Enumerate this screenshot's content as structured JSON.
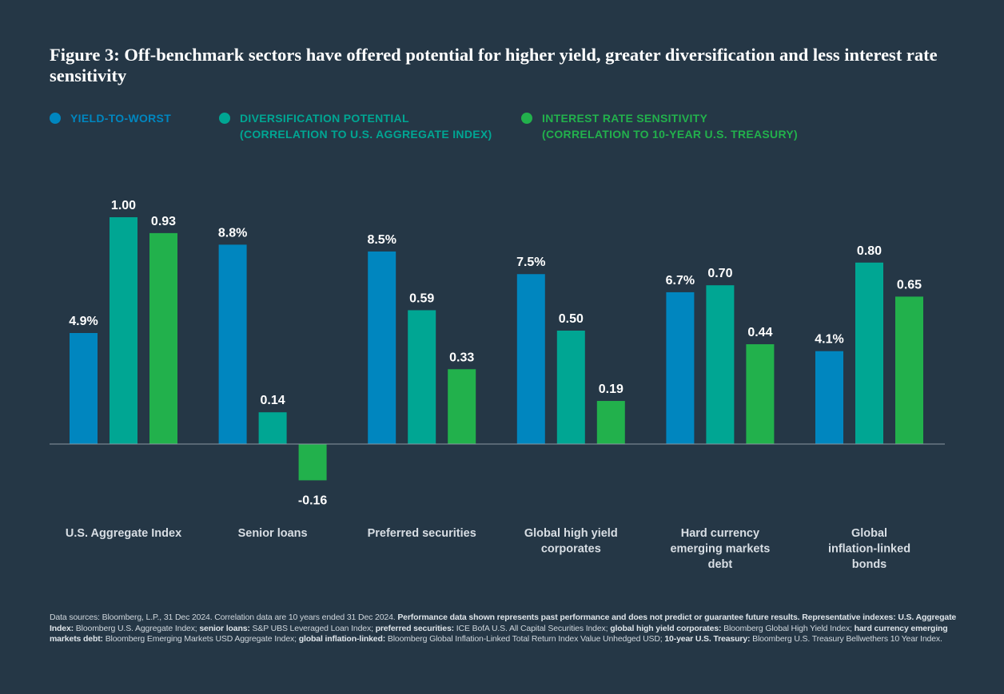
{
  "title": "Figure 3: Off-benchmark sectors have offered potential for higher yield, greater diversification and less interest rate sensitivity",
  "colors": {
    "background": "#253746",
    "yield": "#0086BF",
    "diversification": "#00A693",
    "rate_sensitivity": "#22B14C",
    "label_text": "#ffffff",
    "category_text": "#d8dee4",
    "baseline": "#8a97a2"
  },
  "legend": [
    {
      "line1": "YIELD-TO-WORST",
      "line2": "",
      "color": "#0086BF"
    },
    {
      "line1": "DIVERSIFICATION POTENTIAL",
      "line2": "(CORRELATION TO U.S. AGGREGATE INDEX)",
      "color": "#00A693"
    },
    {
      "line1": "INTEREST RATE SENSITIVITY",
      "line2": "(CORRELATION TO 10-YEAR U.S. TREASURY)",
      "color": "#22B14C"
    }
  ],
  "chart_data": {
    "type": "bar",
    "title": "Figure 3: Off-benchmark sectors have offered potential for higher yield, greater diversification and less interest rate sensitivity",
    "categories": [
      [
        "U.S. Aggregate Index"
      ],
      [
        "Senior loans"
      ],
      [
        "Preferred securities"
      ],
      [
        "Global high yield",
        "corporates"
      ],
      [
        "Hard currency",
        "emerging markets",
        "debt"
      ],
      [
        "Global",
        "inflation-linked",
        "bonds"
      ]
    ],
    "series": [
      {
        "name": "Yield-to-worst",
        "unit": "%",
        "values": [
          4.9,
          8.8,
          8.5,
          7.5,
          6.7,
          4.1
        ],
        "labels": [
          "4.9%",
          "8.8%",
          "8.5%",
          "7.5%",
          "6.7%",
          "4.1%"
        ]
      },
      {
        "name": "Diversification potential (correlation to U.S. Aggregate Index)",
        "values": [
          1.0,
          0.14,
          0.59,
          0.5,
          0.7,
          0.8
        ],
        "labels": [
          "1.00",
          "0.14",
          "0.59",
          "0.50",
          "0.70",
          "0.80"
        ]
      },
      {
        "name": "Interest rate sensitivity (correlation to 10-year U.S. Treasury)",
        "values": [
          0.93,
          -0.16,
          0.33,
          0.19,
          0.44,
          0.65
        ],
        "labels": [
          "0.93",
          "-0.16",
          "0.33",
          "0.19",
          "0.44",
          "0.65"
        ]
      }
    ],
    "xlabel": "",
    "ylabel": "",
    "grid": false,
    "legend_position": "top-left"
  },
  "source": {
    "segments": [
      {
        "b": false,
        "t": "Data sources: Bloomberg, L.P., 31 Dec 2024. Correlation data are 10 years ended 31 Dec 2024. "
      },
      {
        "b": true,
        "t": "Performance data shown represents past performance and does not predict or guarantee future results. Representative indexes: U.S. Aggregate Index: "
      },
      {
        "b": false,
        "t": "Bloomberg U.S. Aggregate Index; "
      },
      {
        "b": true,
        "t": "senior loans: "
      },
      {
        "b": false,
        "t": "S&P UBS Leveraged Loan Index; "
      },
      {
        "b": true,
        "t": "preferred securities: "
      },
      {
        "b": false,
        "t": "ICE BofA U.S. All Capital Securities Index; "
      },
      {
        "b": true,
        "t": "global high yield corporates: "
      },
      {
        "b": false,
        "t": "Bloomberg Global High Yield Index; "
      },
      {
        "b": true,
        "t": "hard currency emerging markets debt: "
      },
      {
        "b": false,
        "t": "Bloomberg Emerging Markets USD Aggregate Index; "
      },
      {
        "b": true,
        "t": "global inflation-linked: "
      },
      {
        "b": false,
        "t": "Bloomberg Global Inflation-Linked Total Return Index Value Unhedged USD; "
      },
      {
        "b": true,
        "t": "10-year U.S. Treasury: "
      },
      {
        "b": false,
        "t": "Bloomberg U.S. Treasury Bellwethers 10 Year Index."
      }
    ]
  }
}
